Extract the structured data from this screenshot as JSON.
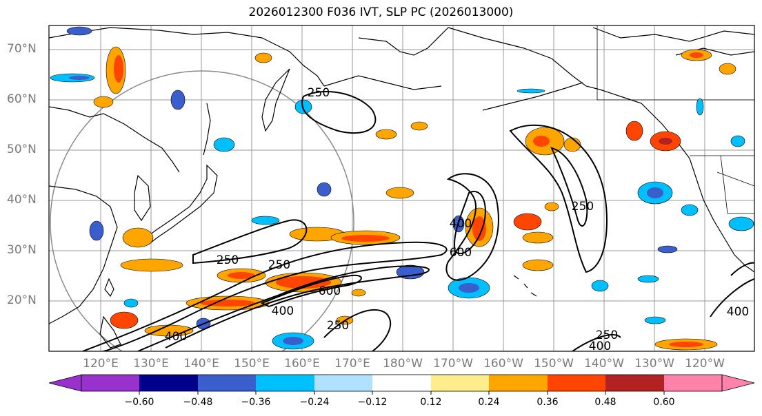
{
  "title": "2026012300 F036 IVT, SLP PC (2026013000)",
  "lat_labels": [
    "70°N",
    "60°N",
    "50°N",
    "40°N",
    "30°N",
    "20°N"
  ],
  "lon_labels": [
    "120°E",
    "130°E",
    "140°E",
    "150°E",
    "160°E",
    "170°E",
    "180°W",
    "170°W",
    "160°W",
    "150°W",
    "140°W",
    "130°W",
    "120°W"
  ],
  "colorbar": {
    "ticks": [
      "−0.60",
      "−0.48",
      "−0.36",
      "−0.24",
      "−0.12",
      "0.12",
      "0.24",
      "0.36",
      "0.48",
      "0.60"
    ],
    "colors": [
      "#9932cc",
      "#00008b",
      "#3a5fcd",
      "#00bfff",
      "#b0e2ff",
      "#ffffff",
      "#ffec8b",
      "#ffa500",
      "#ff4500",
      "#b22222",
      "#ff82ab"
    ]
  },
  "contour_labels": [
    "250",
    "250",
    "250",
    "250",
    "400",
    "400",
    "400",
    "400",
    "400",
    "600",
    "600",
    "250",
    "250"
  ]
}
